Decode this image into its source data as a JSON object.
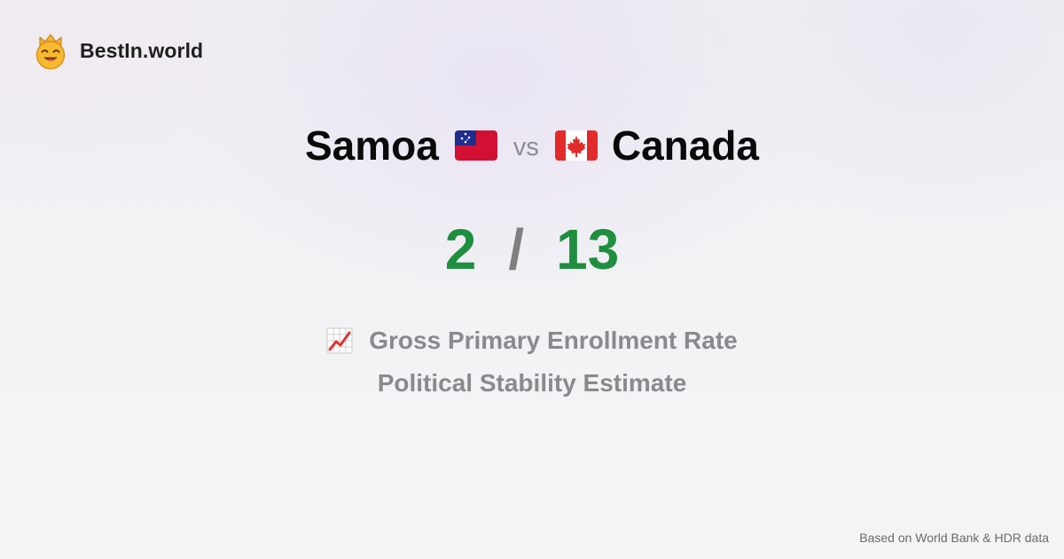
{
  "brand": {
    "name": "BestIn.world",
    "logo_icon": "crowned-smiley-icon"
  },
  "comparison": {
    "left_country": "Samoa",
    "left_flag_icon": "samoa-flag-icon",
    "vs_label": "vs",
    "right_country": "Canada",
    "right_flag_icon": "canada-flag-icon"
  },
  "score": {
    "left": "2",
    "separator": "/",
    "right": "13"
  },
  "metrics": {
    "icon": "chart-increasing-icon",
    "first": "Gross Primary Enrollment Rate",
    "second": "Political Stability Estimate"
  },
  "footer": {
    "source": "Based on World Bank & HDR data"
  },
  "colors": {
    "score_green": "#1f8f3f",
    "muted_gray": "#8a8a8e",
    "title_black": "#0a0a0a"
  }
}
